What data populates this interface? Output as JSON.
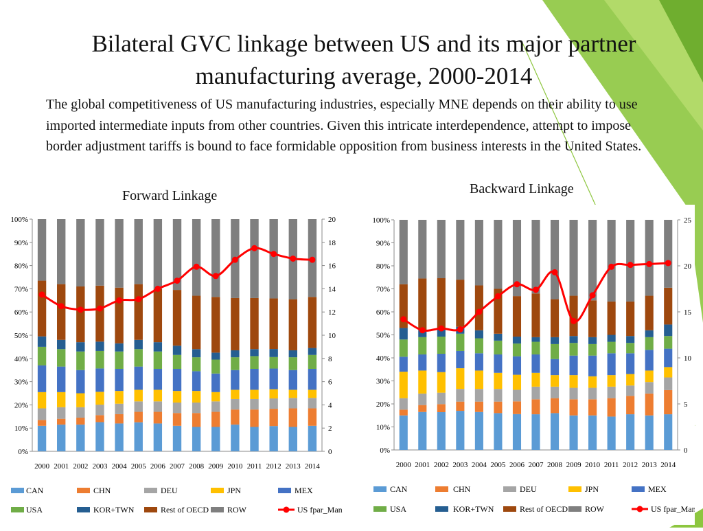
{
  "slide": {
    "title_line1": "Bilateral GVC linkage between US and its major partner",
    "title_line2": "manufacturing average, 2000-2014",
    "body": "The global competitiveness of US manufacturing industries, especially MNE depends on their ability to use imported intermediate inputs from other countries. Given this intricate interdependence, attempt to impose border adjustment tariffs is bound to face formidable opposition from business interests in the United States.",
    "forward_label": "Forward Linkage",
    "backward_label": "Backward Linkage"
  },
  "colors": {
    "CAN": "#5B9BD5",
    "CHN": "#ED7D31",
    "DEU": "#A5A5A5",
    "JPN": "#FFC000",
    "MEX": "#4472C4",
    "USA": "#70AD47",
    "KOR+TWN": "#255E91",
    "Rest of OECD": "#9E480E",
    "ROW": "#7F7F7F",
    "line": "#FF0000",
    "deco_green": "#8DC63F",
    "deco_dark": "#5E9E2E"
  },
  "chart_data": [
    {
      "id": "forward",
      "type": "bar",
      "stacked": "percent",
      "categories": [
        "2000",
        "2001",
        "2002",
        "2003",
        "2004",
        "2005",
        "2006",
        "2007",
        "2008",
        "2009",
        "2010",
        "2011",
        "2012",
        "2013",
        "2014"
      ],
      "ylim": [
        0,
        100
      ],
      "y_ticks": [
        "0%",
        "10%",
        "20%",
        "30%",
        "40%",
        "50%",
        "60%",
        "70%",
        "80%",
        "90%",
        "100%"
      ],
      "y2lim": [
        0,
        20
      ],
      "y2_ticks": [
        "0",
        "2",
        "4",
        "6",
        "8",
        "10",
        "12",
        "14",
        "16",
        "18",
        "20"
      ],
      "series": [
        {
          "name": "CAN",
          "values": [
            11,
            11.5,
            11.5,
            12.5,
            12,
            12.5,
            12,
            11,
            10.5,
            10.5,
            11.5,
            10.5,
            11,
            10.5,
            11
          ]
        },
        {
          "name": "CHN",
          "values": [
            2.5,
            2.5,
            3,
            3,
            4,
            4.5,
            5,
            5.5,
            6,
            6.5,
            6.5,
            7.5,
            7.5,
            8,
            7.5
          ]
        },
        {
          "name": "DEU",
          "values": [
            5,
            5,
            4.5,
            4.5,
            4.5,
            4.5,
            4.5,
            4.5,
            4.5,
            4.5,
            4.5,
            4.5,
            4.5,
            4.5,
            4.5
          ]
        },
        {
          "name": "JPN",
          "values": [
            7,
            6.5,
            6,
            5.5,
            5.5,
            5,
            5,
            5,
            5,
            4,
            4,
            4,
            4,
            3.5,
            3.5
          ]
        },
        {
          "name": "MEX",
          "values": [
            11.5,
            11,
            10,
            10,
            9.5,
            10,
            9,
            9.5,
            8.5,
            8,
            8.5,
            9,
            9,
            8.5,
            9
          ]
        },
        {
          "name": "USA",
          "values": [
            8,
            7.5,
            8,
            7.5,
            7.5,
            7.5,
            7.5,
            6,
            6,
            6,
            5.5,
            5.5,
            5,
            5.5,
            6
          ]
        },
        {
          "name": "KOR+TWN",
          "values": [
            4.5,
            4,
            4,
            4,
            3.5,
            4,
            4,
            4,
            3.5,
            3,
            3,
            3,
            3.5,
            3,
            3
          ]
        },
        {
          "name": "Rest of OECD",
          "values": [
            24,
            24,
            24,
            24,
            24,
            24,
            23,
            24,
            23,
            24,
            22.5,
            22,
            22,
            22,
            22
          ]
        },
        {
          "name": "ROW",
          "values": [
            26.5,
            28,
            29,
            28.5,
            29.5,
            28,
            30,
            30.5,
            33,
            33.5,
            34,
            34,
            34.5,
            34.5,
            33.5
          ]
        }
      ],
      "line": {
        "name": "US fpar_Man",
        "axis": "secondary",
        "values": [
          13.5,
          12.5,
          12.2,
          12.3,
          13,
          13.1,
          14,
          14.7,
          15.9,
          15.1,
          16.5,
          17.5,
          17,
          16.6,
          16.5
        ]
      },
      "legend_row1": [
        "CAN",
        "CHN",
        "DEU",
        "JPN",
        "MEX"
      ],
      "legend_row2": [
        "USA",
        "KOR+TWN",
        "Rest of OECD",
        "ROW",
        "US fpar_Man"
      ]
    },
    {
      "id": "backward",
      "type": "bar",
      "stacked": "percent",
      "categories": [
        "2000",
        "2001",
        "2002",
        "2003",
        "2004",
        "2005",
        "2006",
        "2007",
        "2008",
        "2009",
        "2010",
        "2011",
        "2012",
        "2013",
        "2014"
      ],
      "ylim": [
        0,
        100
      ],
      "y_ticks": [
        "0%",
        "10%",
        "20%",
        "30%",
        "40%",
        "50%",
        "60%",
        "70%",
        "80%",
        "90%",
        "100%"
      ],
      "y2lim": [
        0,
        25
      ],
      "y2_ticks": [
        "0",
        "5",
        "10",
        "15",
        "20",
        "25"
      ],
      "series": [
        {
          "name": "CAN",
          "values": [
            15,
            16.5,
            16.5,
            17,
            16.5,
            16,
            15.5,
            15.5,
            16,
            15,
            15,
            14.5,
            15.5,
            15,
            15.5
          ]
        },
        {
          "name": "CHN",
          "values": [
            2.5,
            3,
            3.5,
            4,
            4.5,
            5,
            5.5,
            6.5,
            6.5,
            7,
            7,
            8,
            8,
            9.5,
            10.5
          ]
        },
        {
          "name": "DEU",
          "values": [
            5,
            5,
            5,
            5.5,
            5.5,
            5.5,
            5,
            5.5,
            5,
            5,
            5,
            5,
            4.5,
            5,
            5.5
          ]
        },
        {
          "name": "JPN",
          "values": [
            11.5,
            10,
            9,
            9,
            8,
            7,
            6.5,
            6,
            5,
            5.5,
            5,
            5,
            5,
            5,
            4.5
          ]
        },
        {
          "name": "MEX",
          "values": [
            6.5,
            7,
            8,
            7.5,
            7.5,
            8,
            8,
            8,
            7,
            8.5,
            9,
            9.5,
            9,
            9,
            8
          ]
        },
        {
          "name": "USA",
          "values": [
            7.5,
            7.5,
            7.5,
            7.5,
            6.5,
            6,
            5.5,
            5.5,
            6.5,
            5.5,
            5,
            5,
            4.5,
            5.5,
            5.5
          ]
        },
        {
          "name": "KOR+TWN",
          "values": [
            5,
            3,
            3,
            3,
            3.5,
            3,
            3,
            2,
            3,
            3,
            3,
            3,
            3,
            3,
            5
          ]
        },
        {
          "name": "Rest of OECD",
          "values": [
            19,
            22.5,
            22.5,
            20.5,
            19.5,
            19.5,
            17.5,
            19,
            16.5,
            17.5,
            16,
            14.5,
            15,
            15,
            16
          ]
        },
        {
          "name": "ROW",
          "values": [
            28,
            25.5,
            25.5,
            26,
            28.5,
            30,
            33,
            32,
            34.5,
            33,
            35,
            35.5,
            35.5,
            33,
            29.5
          ]
        }
      ],
      "line": {
        "name": "US fpar_Man",
        "axis": "secondary",
        "values": [
          14.2,
          13,
          13.2,
          13.1,
          15,
          16.7,
          18,
          17.4,
          19.3,
          14,
          16.8,
          19.9,
          20.1,
          20.2,
          20.3
        ]
      },
      "legend_row1": [
        "CAN",
        "CHN",
        "DEU",
        "JPN",
        "MEX"
      ],
      "legend_row2": [
        "USA",
        "KOR+TWN",
        "Rest of OECD",
        "ROW",
        "US fpar_Man"
      ]
    }
  ]
}
